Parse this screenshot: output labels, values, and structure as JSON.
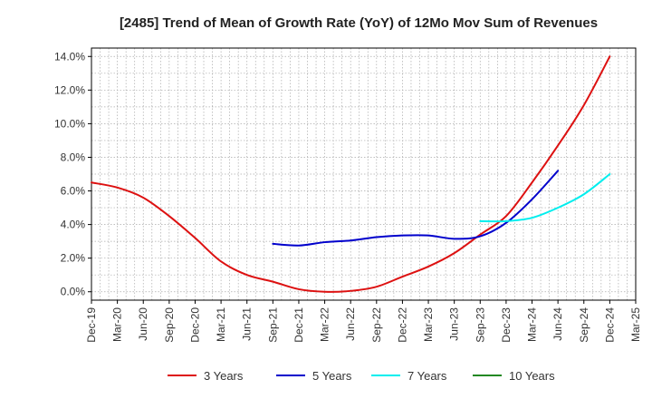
{
  "chart_data": {
    "type": "line",
    "title": "[2485]  Trend of Mean of Growth Rate (YoY) of 12Mo Mov Sum of Revenues",
    "xlabel": "",
    "ylabel": "",
    "ylim": [
      -0.5,
      14.5
    ],
    "yticks": [
      0,
      2,
      4,
      6,
      8,
      10,
      12,
      14
    ],
    "ytick_labels": [
      "0.0%",
      "2.0%",
      "4.0%",
      "6.0%",
      "8.0%",
      "10.0%",
      "12.0%",
      "14.0%"
    ],
    "x_start": "Dec-19",
    "x_end": "Mar-25",
    "xtick_labels": [
      "Dec-19",
      "Mar-20",
      "Jun-20",
      "Sep-20",
      "Dec-20",
      "Mar-21",
      "Jun-21",
      "Sep-21",
      "Dec-21",
      "Mar-22",
      "Jun-22",
      "Sep-22",
      "Dec-22",
      "Mar-23",
      "Jun-23",
      "Sep-23",
      "Dec-23",
      "Mar-24",
      "Jun-24",
      "Sep-24",
      "Dec-24",
      "Mar-25"
    ],
    "grid": true,
    "legend_position": "bottom",
    "series": [
      {
        "name": "3 Years",
        "color": "#dd1111",
        "start_index": 0,
        "values": [
          6.5,
          6.2,
          5.6,
          4.5,
          3.2,
          1.8,
          1.0,
          0.6,
          0.15,
          0.0,
          0.05,
          0.3,
          0.9,
          1.5,
          2.3,
          3.4,
          4.5,
          6.5,
          8.7,
          11.1,
          14.0
        ]
      },
      {
        "name": "5 Years",
        "color": "#0000cc",
        "start_index": 7,
        "values": [
          2.85,
          2.75,
          2.95,
          3.05,
          3.25,
          3.35,
          3.35,
          3.15,
          3.3,
          4.1,
          5.5,
          7.2
        ]
      },
      {
        "name": "7 Years",
        "color": "#00eeee",
        "start_index": 15,
        "values": [
          4.2,
          4.2,
          4.4,
          5.0,
          5.8,
          7.0
        ]
      },
      {
        "name": "10 Years",
        "color": "#228822",
        "start_index": 0,
        "values": []
      }
    ]
  }
}
